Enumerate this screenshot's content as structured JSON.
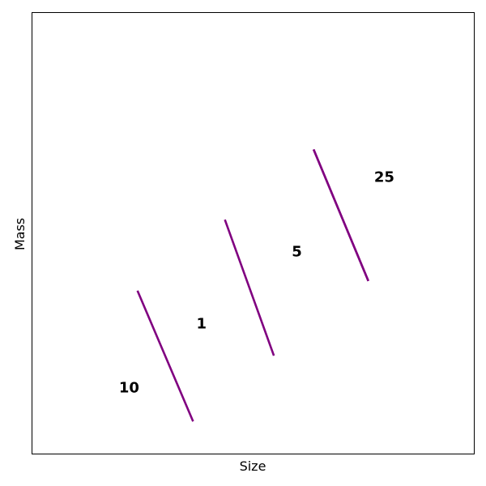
{
  "chart_data": {
    "type": "line",
    "title": "",
    "xlabel": "Size",
    "ylabel": "Mass",
    "xlim": [
      0,
      1
    ],
    "ylim": [
      0,
      1
    ],
    "grid": false,
    "axis_ticks": "hidden",
    "line_color": "#800080",
    "series": [
      {
        "label": "10",
        "points": [
          [
            0.238,
            0.369
          ],
          [
            0.364,
            0.073
          ]
        ]
      },
      {
        "label": "1",
        "points": [
          [
            0.436,
            0.53
          ],
          [
            0.547,
            0.222
          ]
        ]
      },
      {
        "label": "5",
        "points": [
          [
            0.637,
            0.689
          ],
          [
            0.761,
            0.391
          ]
        ]
      },
      {
        "label": "25",
        "points": [
          [
            0.637,
            0.689
          ],
          [
            0.761,
            0.391
          ]
        ]
      }
    ],
    "annotations": [
      {
        "text": "10",
        "x": 0.219,
        "y": 0.148
      },
      {
        "text": "1",
        "x": 0.383,
        "y": 0.293
      },
      {
        "text": "5",
        "x": 0.599,
        "y": 0.456
      },
      {
        "text": "25",
        "x": 0.797,
        "y": 0.625
      }
    ]
  }
}
